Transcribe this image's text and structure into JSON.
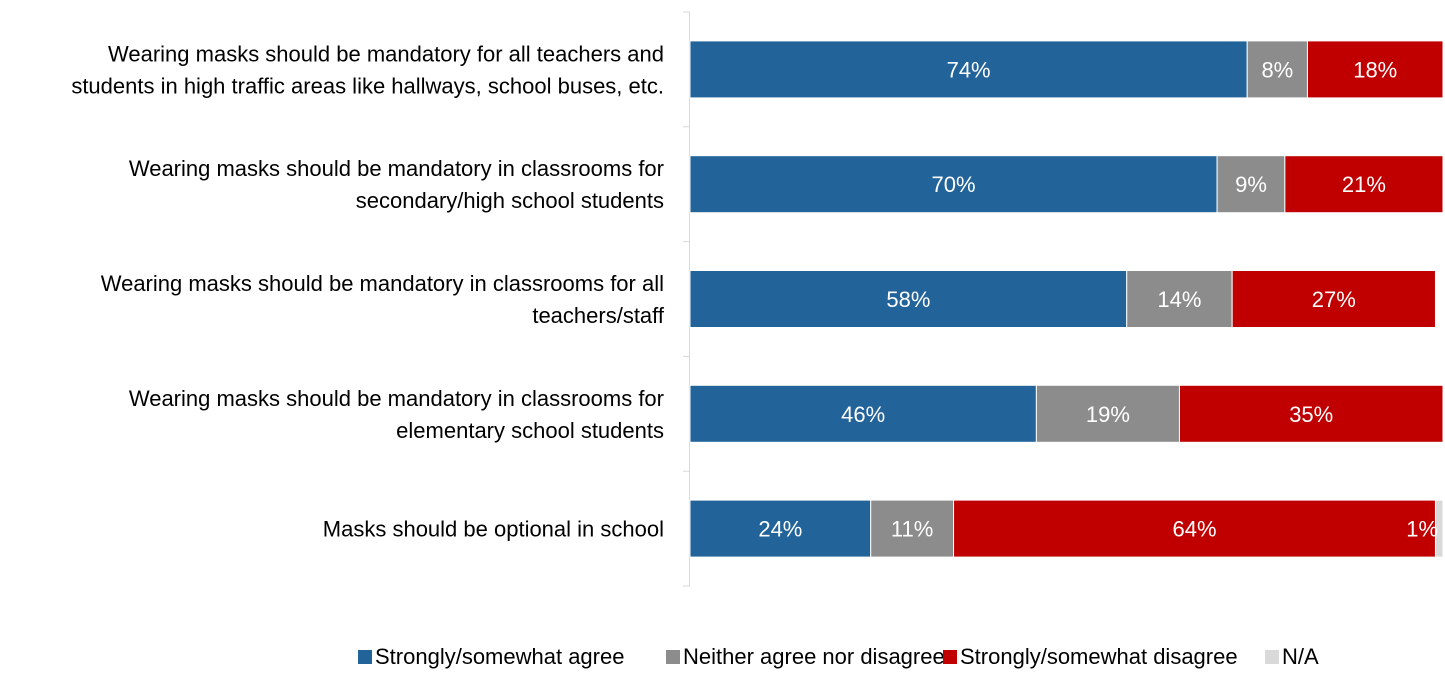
{
  "chart_data": {
    "type": "bar",
    "orientation": "horizontal",
    "stacked": true,
    "percent_scale": true,
    "categories": [
      [
        "Wearing masks should be mandatory for all teachers and",
        "students in high traffic areas like hallways, school buses, etc."
      ],
      [
        "Wearing masks should be mandatory in classrooms for",
        "secondary/high school students"
      ],
      [
        "Wearing masks should be mandatory in classrooms for all",
        "teachers/staff"
      ],
      [
        "Wearing masks should be mandatory in classrooms for",
        "elementary school students"
      ],
      [
        "Masks should be optional in school"
      ]
    ],
    "series": [
      {
        "name": "Strongly/somewhat agree",
        "color": "#22639A",
        "label_color": "#ffffff",
        "values": [
          74,
          70,
          58,
          46,
          24
        ],
        "labels": [
          "74%",
          "70%",
          "58%",
          "46%",
          "24%"
        ]
      },
      {
        "name": "Neither agree nor disagree",
        "color": "#8C8C8C",
        "label_color": "#ffffff",
        "values": [
          8,
          9,
          14,
          19,
          11
        ],
        "labels": [
          "8%",
          "9%",
          "14%",
          "19%",
          "11%"
        ]
      },
      {
        "name": "Strongly/somewhat disagree",
        "color": "#C00000",
        "label_color": "#ffffff",
        "values": [
          18,
          21,
          27,
          35,
          64
        ],
        "labels": [
          "18%",
          "21%",
          "27%",
          "35%",
          "64%"
        ]
      },
      {
        "name": "N/A",
        "color": "#D9D9D9",
        "label_color": "#ffffff",
        "values": [
          0,
          0,
          0,
          0,
          1
        ],
        "labels": [
          "",
          "",
          "",
          "",
          ""
        ]
      }
    ],
    "annotations": [
      {
        "category_index": 4,
        "series_index": 3,
        "text": "1%",
        "color": "#ffffff"
      }
    ],
    "xlim": [
      0,
      100
    ],
    "grid": false,
    "legend": "bottom"
  }
}
